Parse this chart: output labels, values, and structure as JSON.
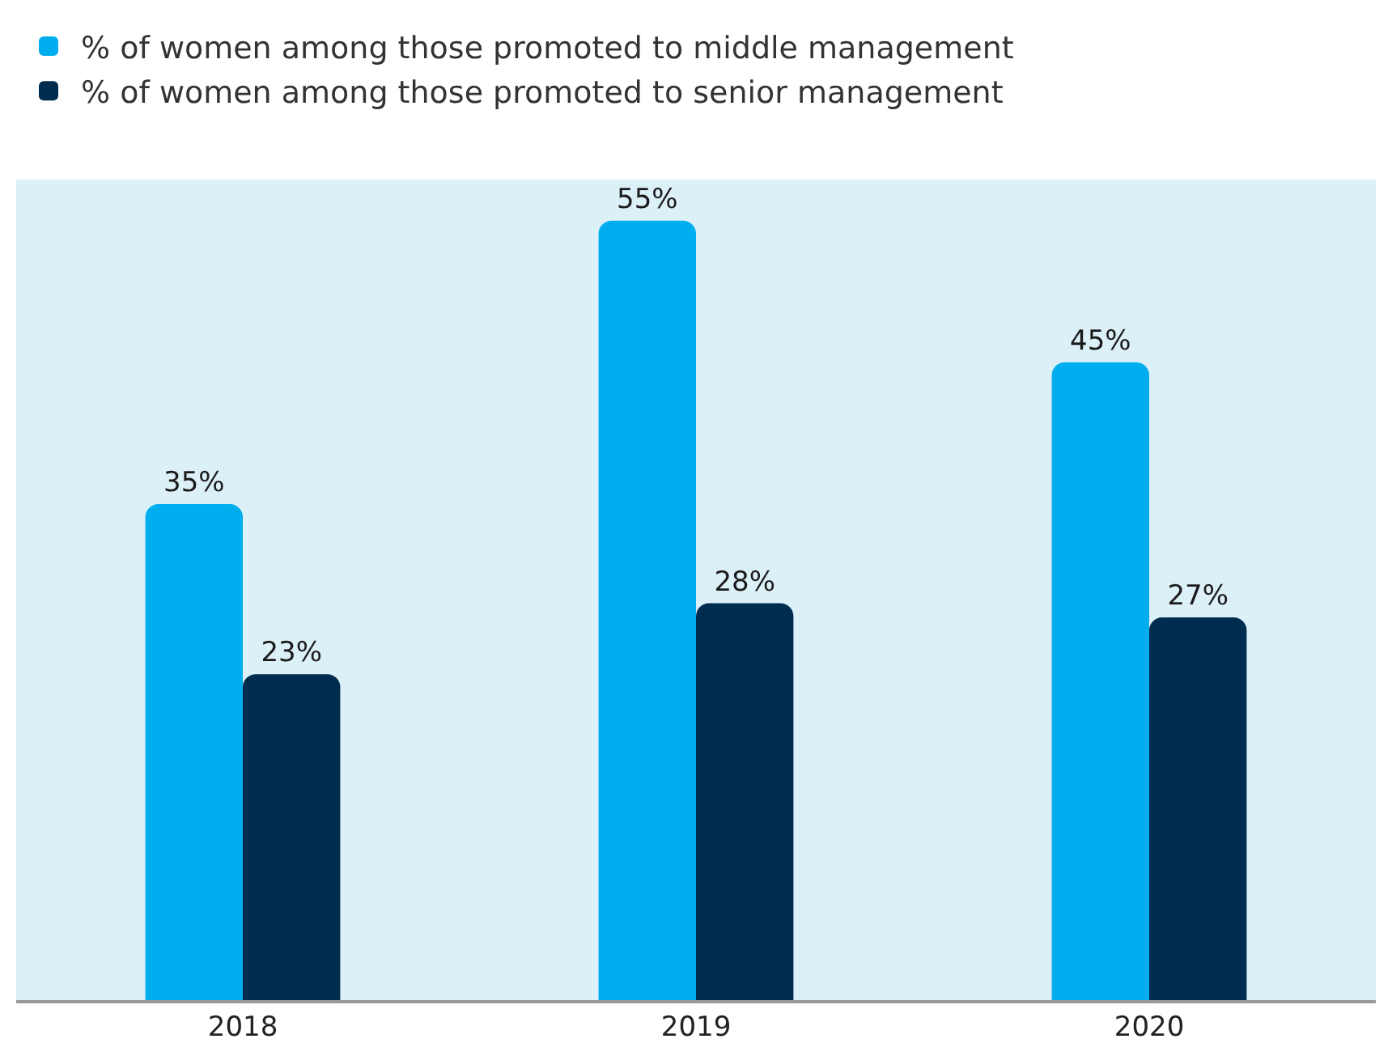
{
  "chart_data": {
    "type": "bar",
    "categories": [
      "2018",
      "2019",
      "2020"
    ],
    "series": [
      {
        "name": "% of women among those promoted to middle management",
        "color": "#00aeef",
        "values": [
          35,
          55,
          45
        ],
        "value_labels": [
          "35%",
          "55%",
          "45%"
        ]
      },
      {
        "name": "% of women among those promoted to senior management",
        "color": "#002d4f",
        "values": [
          23,
          28,
          27
        ],
        "value_labels": [
          "23%",
          "28%",
          "27%"
        ]
      }
    ],
    "legend": "top left",
    "grid": false,
    "tick_labels": "x"
  }
}
